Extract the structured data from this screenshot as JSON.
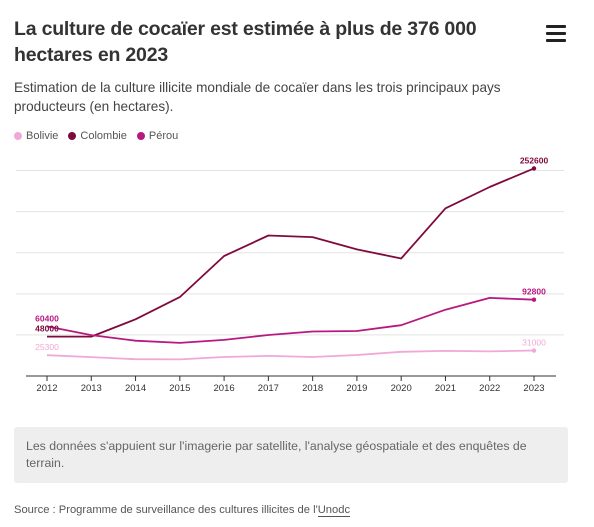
{
  "title": "La culture de cocaïer est estimée à plus de 376 000 hectares en 2023",
  "subtitle": "Estimation de la culture illicite mondiale de cocaïer dans les trois principaux pays producteurs (en hectares).",
  "menu_icon": "hamburger-menu-icon",
  "legend": [
    {
      "label": "Bolivie",
      "color": "#f0a8d6"
    },
    {
      "label": "Colombie",
      "color": "#7f0a3d"
    },
    {
      "label": "Pérou",
      "color": "#b8197f"
    }
  ],
  "chart_data": {
    "type": "line",
    "x": [
      "2012",
      "2013",
      "2014",
      "2015",
      "2016",
      "2017",
      "2018",
      "2019",
      "2020",
      "2021",
      "2022",
      "2023"
    ],
    "series": [
      {
        "name": "Bolivie",
        "color": "#f0a8d6",
        "values": [
          25300,
          23000,
          20400,
          20200,
          23100,
          24500,
          23100,
          25500,
          29400,
          30500,
          29900,
          31000
        ]
      },
      {
        "name": "Colombie",
        "color": "#7f0a3d",
        "values": [
          48000,
          48000,
          69000,
          96000,
          146000,
          171000,
          169000,
          154000,
          143000,
          204000,
          230000,
          252600
        ]
      },
      {
        "name": "Pérou",
        "color": "#b8197f",
        "values": [
          60400,
          49800,
          42900,
          40300,
          43900,
          49900,
          54100,
          54700,
          61800,
          80700,
          95000,
          92800
        ]
      }
    ],
    "data_labels": [
      {
        "series": "Bolivie",
        "x": "2012",
        "text": "25300"
      },
      {
        "series": "Colombie",
        "x": "2012",
        "text": "48000"
      },
      {
        "series": "Pérou",
        "x": "2012",
        "text": "60400"
      },
      {
        "series": "Bolivie",
        "x": "2023",
        "text": "31000"
      },
      {
        "series": "Colombie",
        "x": "2023",
        "text": "252600"
      },
      {
        "series": "Pérou",
        "x": "2023",
        "text": "92800"
      }
    ],
    "ylim": [
      0,
      275000
    ],
    "grid": true,
    "legend_position": "top-left"
  },
  "note": "Les données s'appuient sur l'imagerie par satellite, l'analyse géospatiale et des enquêtes de terrain.",
  "source": {
    "prefix": "Source : Programme de surveillance des cultures illicites de l'",
    "link": "Unodc"
  }
}
